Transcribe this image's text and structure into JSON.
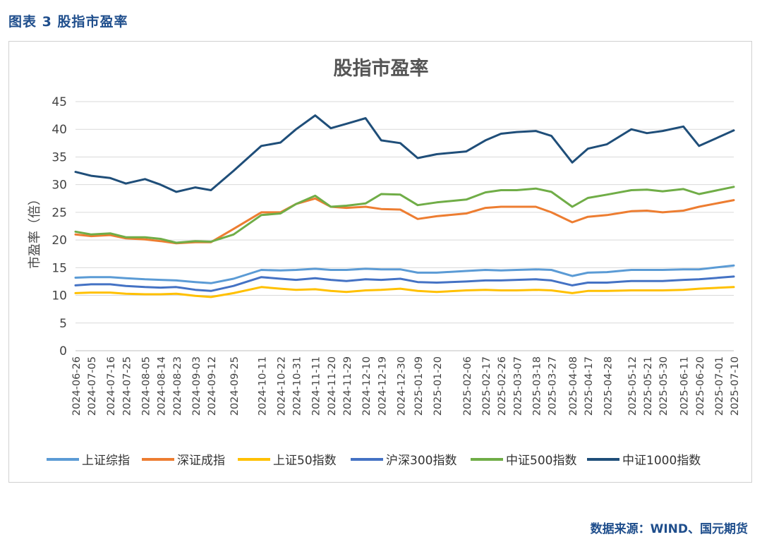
{
  "figure": {
    "caption": "图表 3 股指市盈率",
    "source": "数据来源：WIND、国元期货"
  },
  "chart_data": {
    "type": "line",
    "title": "股指市盈率",
    "ylabel": "市盈率（倍）",
    "xlabel": "",
    "ylim": [
      0,
      45
    ],
    "yticks": [
      0,
      5,
      10,
      15,
      20,
      25,
      30,
      35,
      40,
      45
    ],
    "grid": true,
    "legend_position": "bottom",
    "x": [
      "2024-06-26",
      "2024-07-05",
      "2024-07-16",
      "2024-07-25",
      "2024-08-05",
      "2024-08-14",
      "2024-08-23",
      "2024-09-03",
      "2024-09-12",
      "2024-09-25",
      "2024-10-11",
      "2024-10-22",
      "2024-10-31",
      "2024-11-11",
      "2024-11-20",
      "2024-11-29",
      "2024-12-10",
      "2024-12-19",
      "2024-12-30",
      "2025-01-09",
      "2025-01-20",
      "2025-02-06",
      "2025-02-17",
      "2025-02-26",
      "2025-03-07",
      "2025-03-18",
      "2025-03-27",
      "2025-04-08",
      "2025-04-17",
      "2025-04-28",
      "2025-05-12",
      "2025-05-21",
      "2025-05-30",
      "2025-06-11",
      "2025-06-20",
      "2025-07-10"
    ],
    "x_ticks": [
      "2024-06-26",
      "2024-07-05",
      "2024-07-16",
      "2024-07-25",
      "2024-08-05",
      "2024-08-14",
      "2024-08-23",
      "2024-09-03",
      "2024-09-12",
      "2024-09-25",
      "2024-10-11",
      "2024-10-22",
      "2024-10-31",
      "2024-11-11",
      "2024-11-20",
      "2024-11-29",
      "2024-12-10",
      "2024-12-19",
      "2024-12-30",
      "2025-01-09",
      "2025-01-20",
      "2025-02-06",
      "2025-02-17",
      "2025-02-26",
      "2025-03-07",
      "2025-03-18",
      "2025-03-27",
      "2025-04-08",
      "2025-04-17",
      "2025-04-28",
      "2025-05-12",
      "2025-05-21",
      "2025-05-30",
      "2025-06-11",
      "2025-06-20",
      "2025-07-01",
      "2025-07-10"
    ],
    "series": [
      {
        "name": "上证综指",
        "color": "#5b9bd5",
        "values": [
          13.2,
          13.3,
          13.3,
          13.1,
          12.9,
          12.8,
          12.7,
          12.4,
          12.2,
          13.0,
          14.6,
          14.5,
          14.6,
          14.8,
          14.6,
          14.6,
          14.8,
          14.7,
          14.7,
          14.1,
          14.1,
          14.4,
          14.6,
          14.5,
          14.6,
          14.7,
          14.6,
          13.5,
          14.1,
          14.2,
          14.6,
          14.6,
          14.6,
          14.7,
          14.7,
          15.4
        ]
      },
      {
        "name": "深证成指",
        "color": "#ed7d31",
        "values": [
          21.0,
          20.7,
          20.9,
          20.3,
          20.1,
          19.8,
          19.4,
          19.6,
          19.6,
          22.0,
          25.0,
          25.0,
          26.5,
          27.5,
          26.0,
          25.8,
          26.0,
          25.6,
          25.5,
          23.8,
          24.3,
          24.8,
          25.8,
          26.0,
          26.0,
          26.0,
          25.0,
          23.2,
          24.2,
          24.5,
          25.2,
          25.3,
          25.0,
          25.3,
          26.0,
          27.2
        ]
      },
      {
        "name": "上证50指数",
        "color": "#ffc000",
        "values": [
          10.4,
          10.5,
          10.5,
          10.3,
          10.2,
          10.2,
          10.3,
          9.9,
          9.7,
          10.4,
          11.5,
          11.2,
          11.0,
          11.1,
          10.8,
          10.6,
          10.9,
          11.0,
          11.2,
          10.8,
          10.6,
          10.9,
          11.0,
          10.9,
          10.9,
          11.0,
          10.9,
          10.4,
          10.8,
          10.8,
          10.9,
          10.9,
          10.9,
          11.0,
          11.2,
          11.5
        ]
      },
      {
        "name": "沪深300指数",
        "color": "#4472c4",
        "values": [
          11.8,
          12.0,
          12.0,
          11.7,
          11.5,
          11.4,
          11.5,
          11.0,
          10.8,
          11.7,
          13.3,
          13.0,
          12.8,
          13.1,
          12.8,
          12.6,
          12.9,
          12.8,
          13.0,
          12.4,
          12.3,
          12.5,
          12.7,
          12.7,
          12.8,
          12.9,
          12.7,
          11.8,
          12.3,
          12.3,
          12.6,
          12.6,
          12.6,
          12.8,
          12.9,
          13.4
        ]
      },
      {
        "name": "中证500指数",
        "color": "#70ad47",
        "values": [
          21.5,
          21.0,
          21.2,
          20.5,
          20.5,
          20.2,
          19.5,
          19.8,
          19.7,
          21.0,
          24.5,
          24.8,
          26.5,
          28.0,
          26.0,
          26.2,
          26.6,
          28.3,
          28.2,
          26.3,
          26.8,
          27.3,
          28.6,
          29.0,
          29.0,
          29.3,
          28.7,
          26.0,
          27.6,
          28.2,
          29.0,
          29.1,
          28.8,
          29.2,
          28.3,
          29.6
        ]
      },
      {
        "name": "中证1000指数",
        "color": "#1f4e79",
        "values": [
          32.3,
          31.6,
          31.2,
          30.2,
          31.0,
          30.0,
          28.7,
          29.5,
          29.0,
          32.5,
          37.0,
          37.6,
          40.0,
          42.5,
          40.2,
          41.0,
          42.0,
          38.0,
          37.5,
          34.8,
          35.5,
          36.0,
          38.0,
          39.2,
          39.5,
          39.7,
          38.8,
          34.0,
          36.5,
          37.3,
          40.0,
          39.3,
          39.7,
          40.5,
          37.0,
          39.8
        ]
      }
    ]
  }
}
